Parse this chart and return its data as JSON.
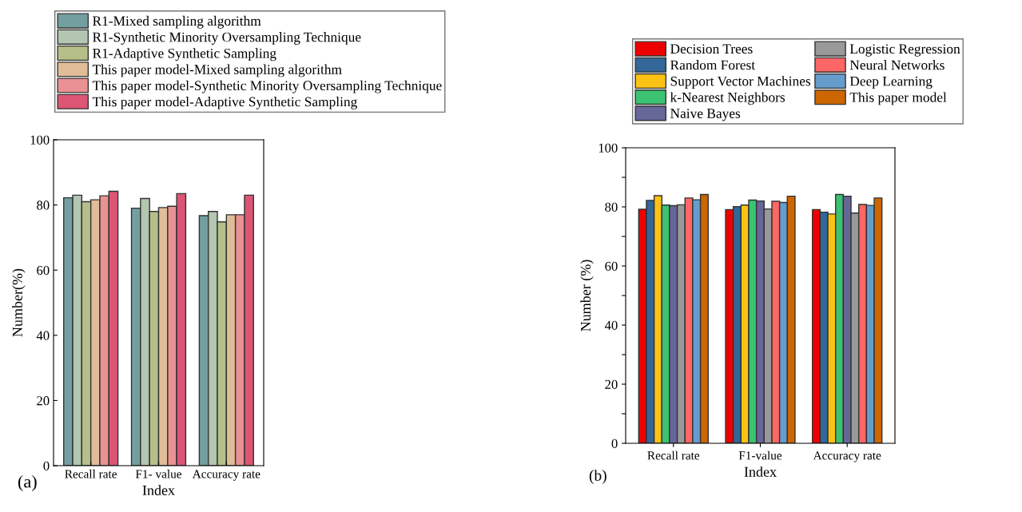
{
  "chart_data": [
    {
      "type": "bar",
      "xlabel": "Index",
      "ylabel": "Number(%)",
      "categories": [
        "Recall rate",
        "F1- value",
        "Accuracy rate"
      ],
      "ylim": [
        0,
        100
      ],
      "yticks": [
        0,
        20,
        40,
        60,
        80,
        100
      ],
      "legend": "top",
      "annotations": [
        "(a)"
      ],
      "series": [
        {
          "name": "R1-Mixed sampling algorithm",
          "color": "#739fa0",
          "values": [
            82.2,
            79,
            76.7
          ]
        },
        {
          "name": "R1-Synthetic Minority Oversampling Technique",
          "color": "#b3c6b1",
          "values": [
            83,
            82,
            78
          ]
        },
        {
          "name": "R1-Adaptive Synthetic Sampling",
          "color": "#b7bf89",
          "values": [
            81,
            78,
            74.8
          ]
        },
        {
          "name": "This paper model-Mixed sampling algorithm",
          "color": "#e0bd98",
          "values": [
            81.6,
            79.2,
            77
          ]
        },
        {
          "name": "This paper model-Synthetic Minority Oversampling Technique",
          "color": "#ea9293",
          "values": [
            82.8,
            79.6,
            77
          ]
        },
        {
          "name": "This paper model-Adaptive Synthetic Sampling",
          "color": "#dc5575",
          "values": [
            84.2,
            83.5,
            83
          ]
        }
      ]
    },
    {
      "type": "bar",
      "xlabel": "Index",
      "ylabel": "Number (%)",
      "categories": [
        "Recall rate",
        "F1-value",
        "Accuracy rate"
      ],
      "ylim": [
        0,
        100
      ],
      "yticks": [
        0,
        {
          "value": 10,
          "label": null
        },
        20,
        {
          "value": 30,
          "label": null
        },
        40,
        {
          "value": 50,
          "label": null
        },
        60,
        {
          "value": 70,
          "label": null
        },
        80,
        {
          "value": 90,
          "label": null
        },
        100
      ],
      "legend": "top",
      "annotations": [
        "(b)"
      ],
      "series": [
        {
          "name": "Decision Trees",
          "color": "#ee0000",
          "values": [
            79.2,
            79.1,
            79.1
          ]
        },
        {
          "name": "Random Forest",
          "color": "#336699",
          "values": [
            82.2,
            80.1,
            78.2
          ]
        },
        {
          "name": "Support Vector Machines",
          "color": "#fdc314",
          "values": [
            83.8,
            80.6,
            77.6
          ]
        },
        {
          "name": "k-Nearest Neighbors",
          "color": "#3cc371",
          "values": [
            80.6,
            82.3,
            84.2
          ]
        },
        {
          "name": "Naive Bayes",
          "color": "#666699",
          "values": [
            80.4,
            82,
            83.6
          ]
        },
        {
          "name": "Logistic Regression",
          "color": "#999999",
          "values": [
            80.7,
            79.3,
            77.9
          ]
        },
        {
          "name": "Neural Networks",
          "color": "#ff6666",
          "values": [
            83,
            81.9,
            80.8
          ]
        },
        {
          "name": "Deep Learning",
          "color": "#669ccc",
          "values": [
            82.4,
            81.5,
            80.5
          ]
        },
        {
          "name": "This paper model",
          "color": "#cc6600",
          "values": [
            84.2,
            83.6,
            83
          ]
        }
      ]
    }
  ]
}
